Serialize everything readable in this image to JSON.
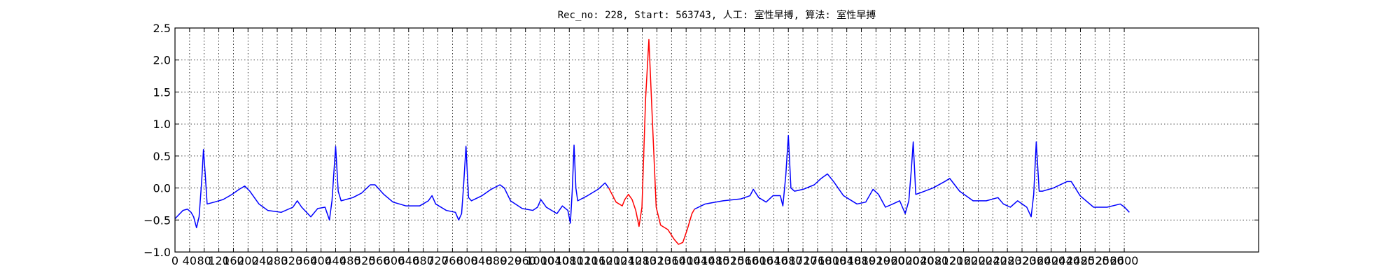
{
  "chart_data": {
    "type": "line",
    "title": "Rec_no: 228, Start: 563743, 人工: 室性早搏, 算法: 室性早搏",
    "xlim": [
      0,
      2968
    ],
    "ylim": [
      -1.0,
      2.5
    ],
    "xticks": [
      0,
      40,
      80,
      120,
      160,
      200,
      240,
      280,
      320,
      360,
      400,
      440,
      480,
      520,
      560,
      600,
      640,
      680,
      720,
      760,
      800,
      840,
      880,
      920,
      960,
      1000,
      1040,
      1080,
      1120,
      1160,
      1200,
      1240,
      1280,
      1320,
      1360,
      1400,
      1440,
      1480,
      1520,
      1560,
      1600,
      1640,
      1680,
      1720,
      1760,
      1800,
      1840,
      1880,
      1920,
      1960,
      2000,
      2040,
      2080,
      2120,
      2160,
      2200,
      2240,
      2280,
      2320,
      2360,
      2400,
      2440,
      2480,
      2520,
      2560,
      2600
    ],
    "yticks": [
      {
        "value": -1.0,
        "label": "−1.0"
      },
      {
        "value": -0.5,
        "label": "−0.5"
      },
      {
        "value": 0.0,
        "label": "0.0"
      },
      {
        "value": 0.5,
        "label": "0.5"
      },
      {
        "value": 1.0,
        "label": "1.0"
      },
      {
        "value": 1.5,
        "label": "1.5"
      },
      {
        "value": 2.0,
        "label": "2.0"
      },
      {
        "value": 2.5,
        "label": "2.5"
      }
    ],
    "grid": true,
    "series": [
      {
        "color": "#0000ff",
        "x": [
          0,
          10,
          22,
          34,
          44,
          51,
          59,
          66,
          73,
          78,
          83,
          88,
          108,
          132,
          156,
          176,
          191,
          205,
          230,
          254,
          291,
          323,
          335,
          347,
          372,
          391,
          411,
          423,
          430,
          440,
          447,
          455,
          487,
          511,
          535,
          548,
          572,
          597,
          633,
          670,
          694,
          704,
          714,
          743,
          768,
          777,
          785,
          790,
          797,
          804,
          812,
          841,
          866,
          890,
          902,
          919,
          951,
          980,
          993,
          1002,
          1017,
          1046,
          1061,
          1076,
          1083,
          1088,
          1093,
          1098,
          1103,
          1130,
          1159,
          1178,
          1188
        ],
        "values": [
          -0.48,
          -0.42,
          -0.35,
          -0.33,
          -0.38,
          -0.45,
          -0.62,
          -0.45,
          0.1,
          0.6,
          0.2,
          -0.25,
          -0.22,
          -0.18,
          -0.1,
          -0.02,
          0.03,
          -0.05,
          -0.25,
          -0.35,
          -0.38,
          -0.3,
          -0.2,
          -0.3,
          -0.45,
          -0.32,
          -0.3,
          -0.5,
          -0.2,
          0.65,
          -0.05,
          -0.2,
          -0.15,
          -0.08,
          0.05,
          0.05,
          -0.1,
          -0.22,
          -0.28,
          -0.28,
          -0.2,
          -0.12,
          -0.25,
          -0.35,
          -0.38,
          -0.5,
          -0.4,
          0.0,
          0.65,
          -0.15,
          -0.2,
          -0.12,
          -0.02,
          0.05,
          0.0,
          -0.2,
          -0.32,
          -0.35,
          -0.3,
          -0.18,
          -0.3,
          -0.4,
          -0.28,
          -0.35,
          -0.55,
          -0.05,
          0.67,
          0.0,
          -0.2,
          -0.12,
          -0.02,
          0.08,
          0.0
        ]
      },
      {
        "color": "#ff0000",
        "x": [
          1188,
          1208,
          1225,
          1232,
          1242,
          1252,
          1262,
          1271,
          1279,
          1289,
          1298,
          1308,
          1318,
          1330,
          1350,
          1367,
          1379,
          1391,
          1403,
          1416,
          1423
        ],
        "values": [
          0.0,
          -0.22,
          -0.28,
          -0.18,
          -0.1,
          -0.18,
          -0.35,
          -0.6,
          -0.3,
          1.4,
          2.32,
          1.0,
          -0.3,
          -0.58,
          -0.65,
          -0.8,
          -0.88,
          -0.85,
          -0.65,
          -0.4,
          -0.33
        ]
      },
      {
        "color": "#0000ff",
        "x": [
          1423,
          1452,
          1501,
          1550,
          1575,
          1584,
          1599,
          1619,
          1638,
          1658,
          1665,
          1673,
          1680,
          1687,
          1697,
          1721,
          1751,
          1770,
          1787,
          1804,
          1831,
          1868,
          1892,
          1912,
          1927,
          1946,
          1966,
          1985,
          2000,
          2010,
          2017,
          2022,
          2029,
          2039,
          2076,
          2108,
          2122,
          2149,
          2186,
          2222,
          2254,
          2269,
          2288,
          2308,
          2333,
          2345,
          2352,
          2359,
          2367,
          2376,
          2406,
          2443,
          2455,
          2479,
          2516,
          2553,
          2589,
          2601,
          2614
        ],
        "values": [
          -0.33,
          -0.25,
          -0.2,
          -0.17,
          -0.12,
          -0.02,
          -0.15,
          -0.22,
          -0.12,
          -0.12,
          -0.28,
          0.2,
          0.82,
          0.0,
          -0.05,
          -0.02,
          0.05,
          0.15,
          0.22,
          0.1,
          -0.12,
          -0.25,
          -0.22,
          -0.02,
          -0.1,
          -0.3,
          -0.25,
          -0.2,
          -0.4,
          -0.2,
          0.3,
          0.72,
          -0.1,
          -0.08,
          0.0,
          0.1,
          0.15,
          -0.05,
          -0.2,
          -0.2,
          -0.15,
          -0.25,
          -0.3,
          -0.2,
          -0.3,
          -0.45,
          -0.1,
          0.72,
          -0.05,
          -0.05,
          0.0,
          0.1,
          0.1,
          -0.12,
          -0.3,
          -0.3,
          -0.25,
          -0.3,
          -0.38
        ]
      }
    ]
  }
}
